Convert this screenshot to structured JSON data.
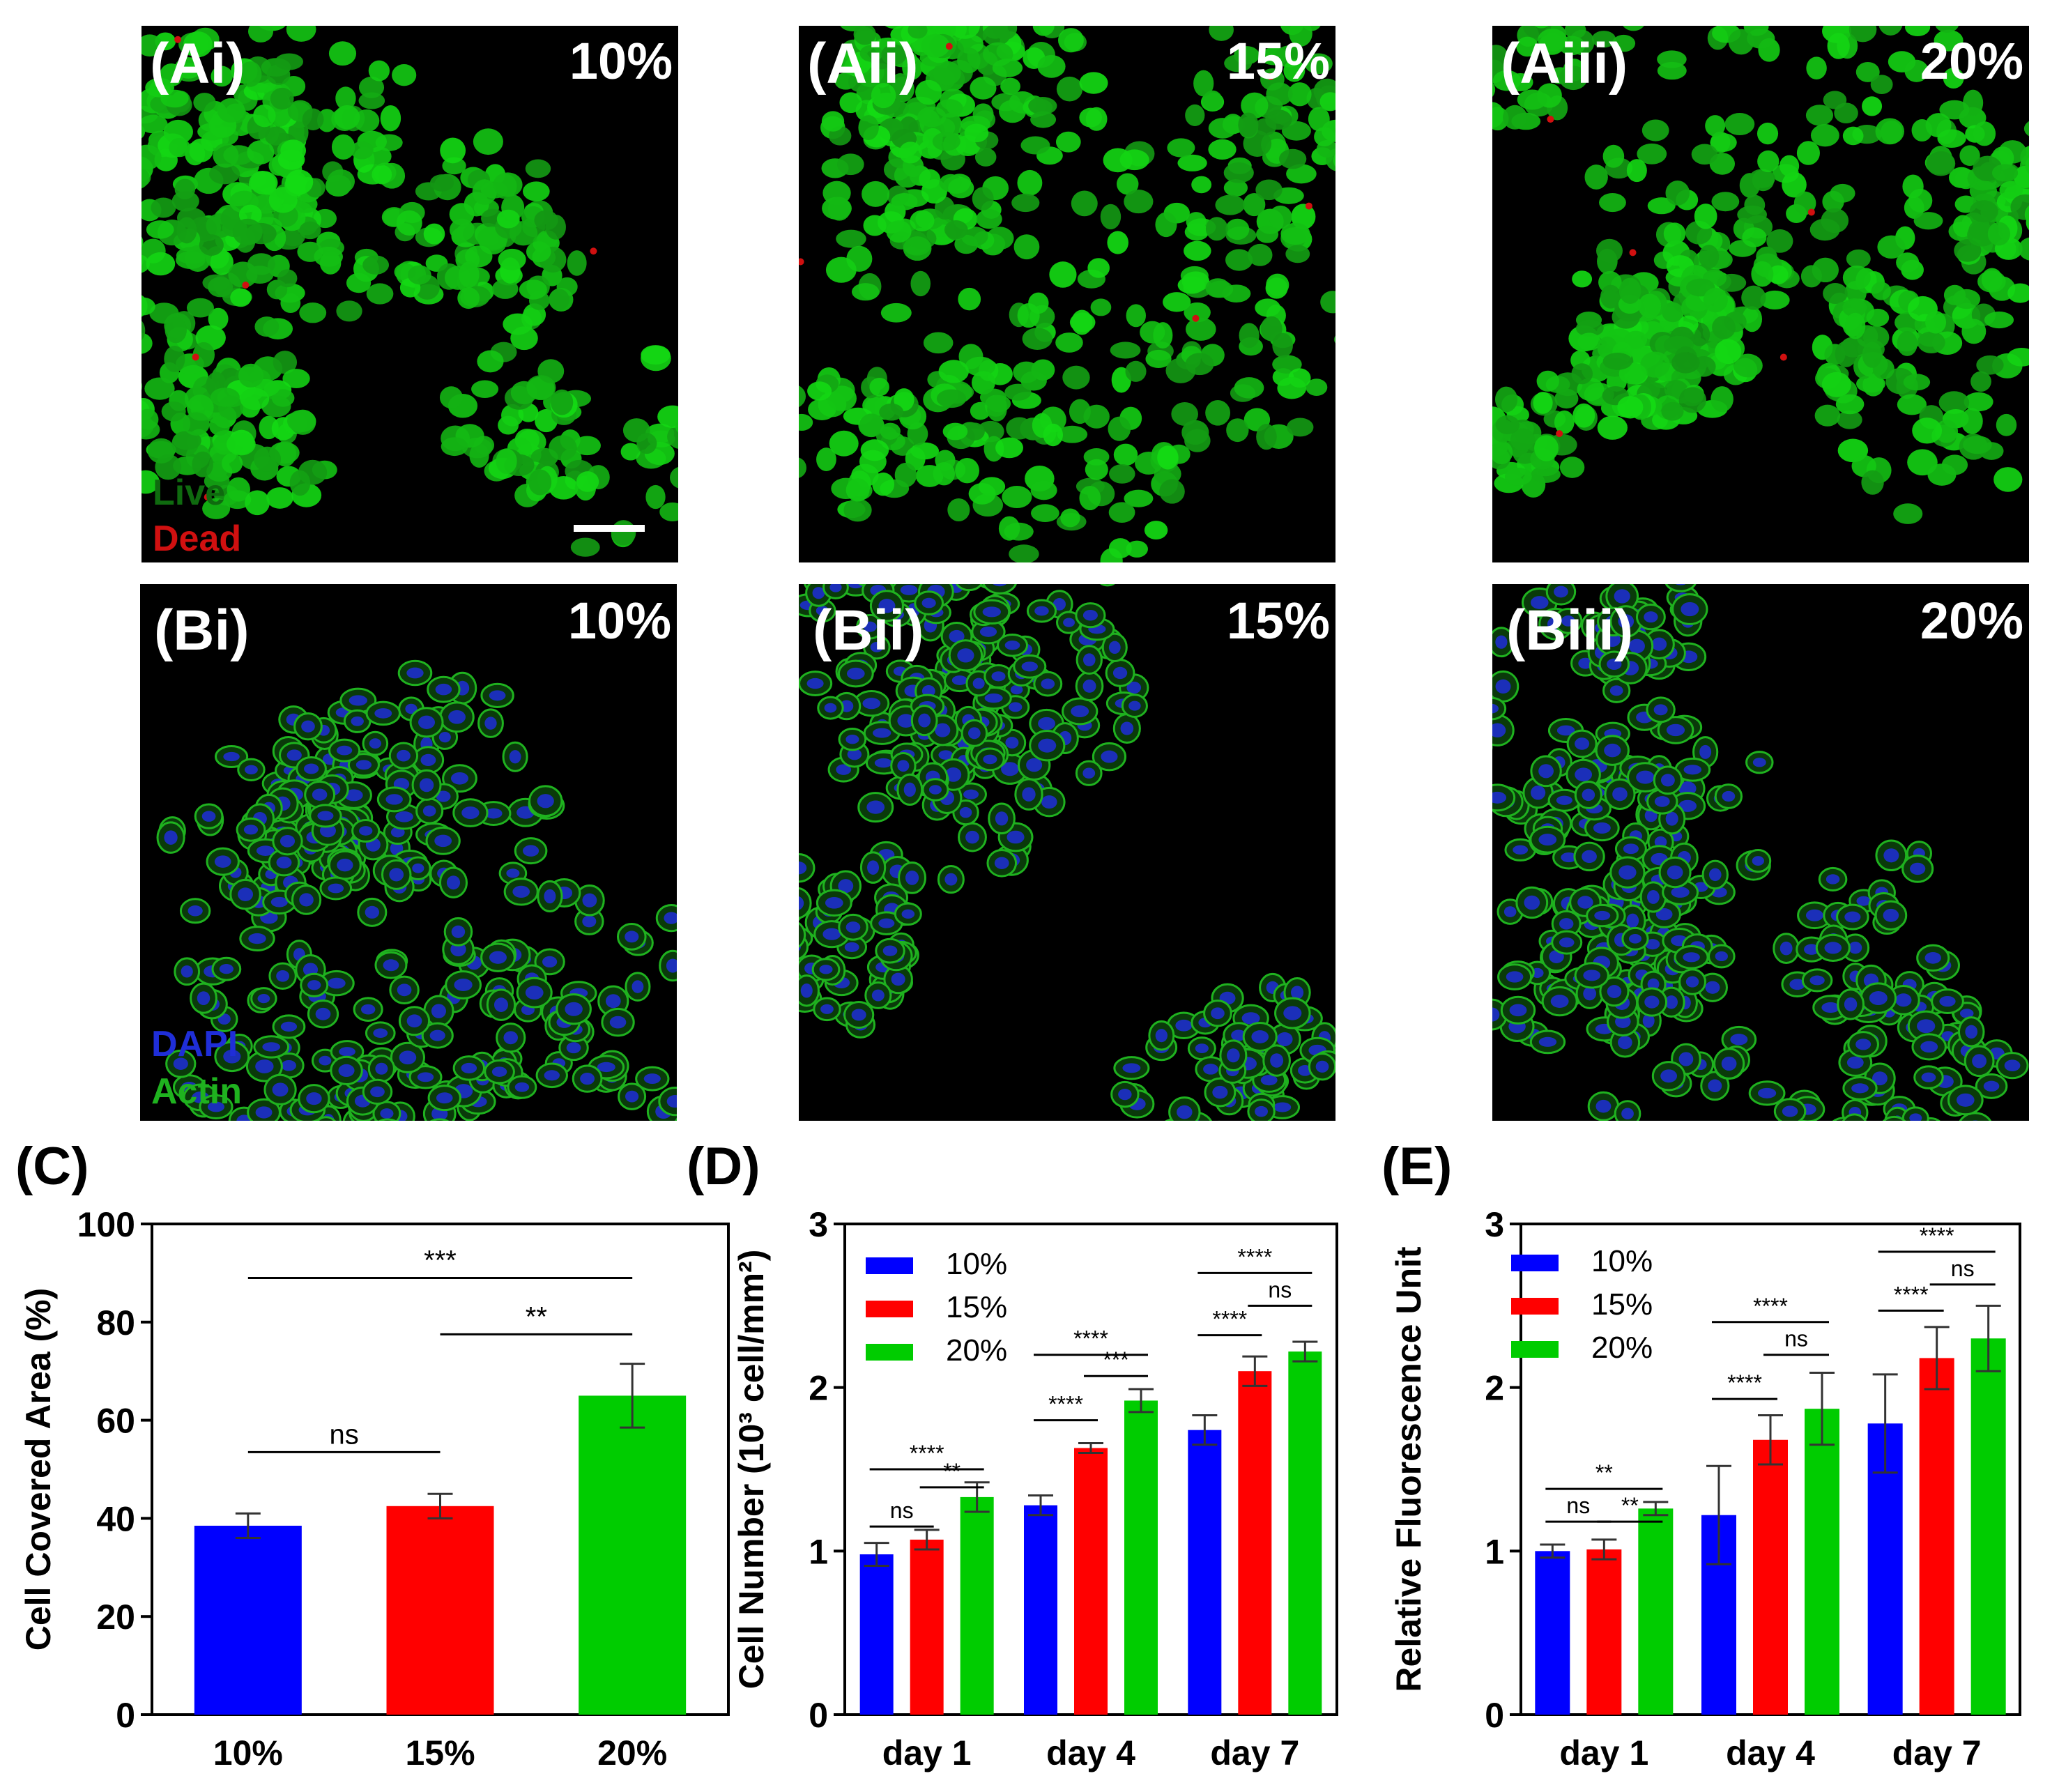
{
  "figure": {
    "A": [
      {
        "label": "(Ai)",
        "percent": "10%"
      },
      {
        "label": "(Aii)",
        "percent": "15%"
      },
      {
        "label": "(Aiii)",
        "percent": "20%"
      }
    ],
    "B": [
      {
        "label": "(Bi)",
        "percent": "10%"
      },
      {
        "label": "(Bii)",
        "percent": "15%"
      },
      {
        "label": "(Biii)",
        "percent": "20%"
      }
    ],
    "stain_A": {
      "live": "Live",
      "dead": "Dead"
    },
    "stain_B": {
      "dapi": "DAPI",
      "actin": "Actin"
    },
    "colors": {
      "live": "#22b822",
      "dead": "#d01010",
      "dapi": "#1f2ed8",
      "actin": "#1fb21f"
    }
  },
  "chart_data": [
    {
      "panel": "(C)",
      "type": "bar",
      "ylabel": "Cell Covered Area (%)",
      "ylim": [
        0,
        100
      ],
      "yticks": [
        "0",
        "20",
        "40",
        "60",
        "80",
        "100"
      ],
      "categories": [
        "10%",
        "15%",
        "20%"
      ],
      "values": [
        38.5,
        42.5,
        65
      ],
      "errors": [
        2.5,
        2.5,
        6.5
      ],
      "colors": [
        "#0000ff",
        "#ff0000",
        "#00cc00"
      ],
      "annotations": [
        {
          "text": "***",
          "from": 0,
          "to": 2,
          "level": 89
        },
        {
          "text": "**",
          "from": 1,
          "to": 2,
          "level": 77.5
        },
        {
          "text": "ns",
          "from": 0,
          "to": 1,
          "level": 53.5
        }
      ]
    },
    {
      "panel": "(D)",
      "type": "bar",
      "ylabel": "Cell Number (10³ cell/mm²)",
      "ylim": [
        0,
        3
      ],
      "yticks": [
        "0",
        "1",
        "2",
        "3"
      ],
      "categories": [
        "day 1",
        "day 4",
        "day 7"
      ],
      "legend": [
        "10%",
        "15%",
        "20%"
      ],
      "series": [
        {
          "name": "10%",
          "values": [
            0.98,
            1.28,
            1.74
          ],
          "errors": [
            0.07,
            0.06,
            0.09
          ]
        },
        {
          "name": "15%",
          "values": [
            1.07,
            1.63,
            2.1
          ],
          "errors": [
            0.06,
            0.03,
            0.09
          ]
        },
        {
          "name": "20%",
          "values": [
            1.33,
            1.92,
            2.22
          ],
          "errors": [
            0.09,
            0.07,
            0.06
          ]
        }
      ],
      "colors": [
        "#0000ff",
        "#ff0000",
        "#00cc00"
      ],
      "annotations": [
        {
          "group": 0,
          "text": "****",
          "from": 0,
          "to": 2,
          "level": 1.5
        },
        {
          "group": 0,
          "text": "**",
          "from": 1,
          "to": 2,
          "level": 1.39
        },
        {
          "group": 0,
          "text": "ns",
          "from": 0,
          "to": 1,
          "level": 1.15
        },
        {
          "group": 1,
          "text": "****",
          "from": 0,
          "to": 2,
          "level": 2.2
        },
        {
          "group": 1,
          "text": "***",
          "from": 1,
          "to": 2,
          "level": 2.07
        },
        {
          "group": 1,
          "text": "****",
          "from": 0,
          "to": 1,
          "level": 1.8
        },
        {
          "group": 2,
          "text": "****",
          "from": 0,
          "to": 2,
          "level": 2.7
        },
        {
          "group": 2,
          "text": "ns",
          "from": 1,
          "to": 2,
          "level": 2.5
        },
        {
          "group": 2,
          "text": "****",
          "from": 0,
          "to": 1,
          "level": 2.32
        }
      ]
    },
    {
      "panel": "(E)",
      "type": "bar",
      "ylabel": "Relative Fluorescence Unit",
      "ylim": [
        0,
        3
      ],
      "yticks": [
        "0",
        "1",
        "2",
        "3"
      ],
      "categories": [
        "day 1",
        "day 4",
        "day 7"
      ],
      "legend": [
        "10%",
        "15%",
        "20%"
      ],
      "series": [
        {
          "name": "10%",
          "values": [
            1.0,
            1.22,
            1.78
          ],
          "errors": [
            0.04,
            0.3,
            0.3
          ]
        },
        {
          "name": "15%",
          "values": [
            1.01,
            1.68,
            2.18
          ],
          "errors": [
            0.06,
            0.15,
            0.19
          ]
        },
        {
          "name": "20%",
          "values": [
            1.26,
            1.87,
            2.3
          ],
          "errors": [
            0.04,
            0.22,
            0.2
          ]
        }
      ],
      "colors": [
        "#0000ff",
        "#ff0000",
        "#00cc00"
      ],
      "annotations": [
        {
          "group": 0,
          "text": "**",
          "from": 0,
          "to": 2,
          "level": 1.38
        },
        {
          "group": 0,
          "text": "ns",
          "from": 0,
          "to": 1,
          "level": 1.18
        },
        {
          "group": 0,
          "text": "**",
          "from": 1,
          "to": 2,
          "level": 1.18
        },
        {
          "group": 1,
          "text": "****",
          "from": 0,
          "to": 2,
          "level": 2.4
        },
        {
          "group": 1,
          "text": "ns",
          "from": 1,
          "to": 2,
          "level": 2.2
        },
        {
          "group": 1,
          "text": "****",
          "from": 0,
          "to": 1,
          "level": 1.93
        },
        {
          "group": 2,
          "text": "****",
          "from": 0,
          "to": 2,
          "level": 2.83
        },
        {
          "group": 2,
          "text": "ns",
          "from": 1,
          "to": 2,
          "level": 2.63
        },
        {
          "group": 2,
          "text": "****",
          "from": 0,
          "to": 1,
          "level": 2.47
        }
      ]
    }
  ]
}
